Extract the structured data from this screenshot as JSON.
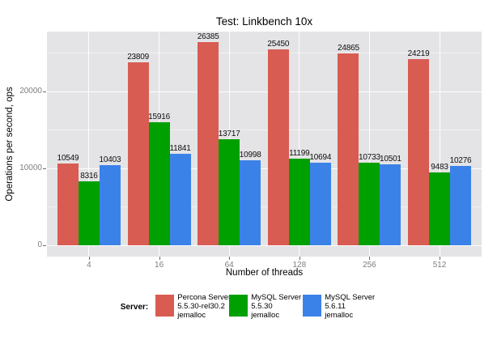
{
  "chart_data": {
    "type": "bar",
    "title": "Test: Linkbench 10x",
    "xlabel": "Number of threads",
    "ylabel": "Operations per second, ops",
    "categories": [
      "4",
      "16",
      "64",
      "128",
      "256",
      "512"
    ],
    "series": [
      {
        "name": "Percona Server 5.5.30-rel30.2 jemalloc",
        "color": "#d95c52",
        "values": [
          10549,
          23809,
          26385,
          25450,
          24865,
          24219
        ]
      },
      {
        "name": "MySQL Server 5.5.30 jemalloc",
        "color": "#00a000",
        "values": [
          8316,
          15916,
          13717,
          11199,
          10733,
          9483
        ]
      },
      {
        "name": "MySQL Server 5.6.11 jemalloc",
        "color": "#3b82e8",
        "values": [
          10403,
          11841,
          10998,
          10694,
          10501,
          10276
        ]
      }
    ],
    "bar_value_labels": true,
    "y_ticks": [
      0,
      10000,
      20000
    ],
    "y_minor_ticks": [
      5000,
      15000,
      25000
    ],
    "ylim": [
      -1520,
      27760
    ],
    "grid": "major-and-minor",
    "legend_position": "bottom",
    "panel_background": "#e4e4e6",
    "gridline_color": "#ffffff"
  },
  "legend": {
    "label": "Server:",
    "entries": [
      {
        "lines": [
          "Percona Server",
          "5.5.30-rel30.2",
          "jemalloc"
        ],
        "color": "#d95c52"
      },
      {
        "lines": [
          "MySQL Server",
          "5.5.30",
          "jemalloc"
        ],
        "color": "#00a000"
      },
      {
        "lines": [
          "MySQL Server",
          "5.6.11",
          "jemalloc"
        ],
        "color": "#3b82e8"
      }
    ]
  }
}
